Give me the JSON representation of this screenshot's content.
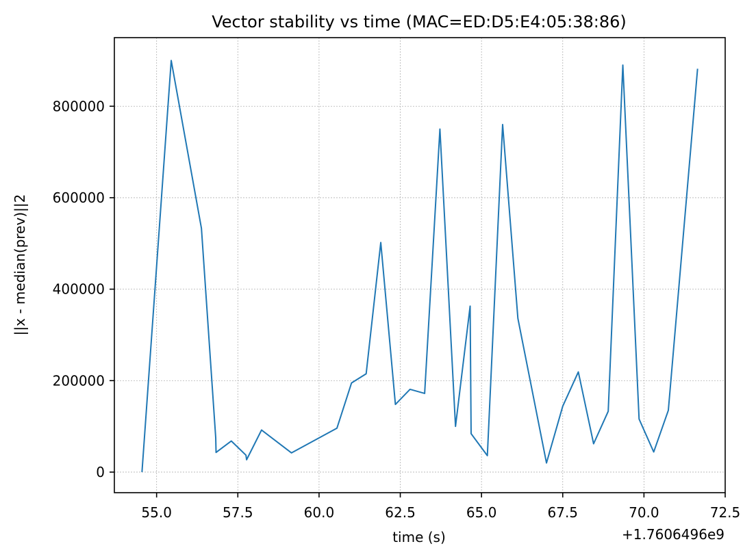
{
  "chart_data": {
    "type": "line",
    "title": "Vector stability vs time (MAC=ED:D5:E4:05:38:86)",
    "xlabel": "time (s)",
    "ylabel": "||x - median(prev)||2",
    "x_offset_label": "+1.7606496e9",
    "xlim": [
      53.7,
      72.5
    ],
    "ylim": [
      -45000,
      950000
    ],
    "x_ticks": [
      55.0,
      57.5,
      60.0,
      62.5,
      65.0,
      67.5,
      70.0,
      72.5
    ],
    "x_tick_labels": [
      "55.0",
      "57.5",
      "60.0",
      "62.5",
      "65.0",
      "67.5",
      "70.0",
      "72.5"
    ],
    "y_ticks": [
      0,
      200000,
      400000,
      600000,
      800000
    ],
    "y_tick_labels": [
      "0",
      "200000",
      "400000",
      "600000",
      "800000"
    ],
    "grid": true,
    "series": [
      {
        "color": "#1f77b4",
        "x": [
          54.55,
          55.45,
          56.38,
          56.82,
          56.83,
          57.3,
          57.75,
          57.77,
          58.23,
          59.15,
          60.55,
          61.0,
          61.45,
          61.9,
          62.35,
          62.8,
          63.25,
          63.72,
          64.2,
          64.65,
          64.68,
          65.18,
          65.65,
          66.12,
          67.0,
          67.5,
          67.98,
          68.45,
          68.9,
          69.35,
          69.85,
          70.3,
          70.75,
          71.65
        ],
        "y": [
          0,
          900000,
          533000,
          75000,
          43000,
          68000,
          37000,
          27000,
          92000,
          42000,
          96000,
          195000,
          215000,
          502000,
          148000,
          181000,
          172000,
          750000,
          100000,
          363000,
          84000,
          36000,
          760000,
          336000,
          20000,
          144000,
          219000,
          62000,
          133000,
          890000,
          116000,
          44000,
          135000,
          882000
        ]
      }
    ]
  }
}
